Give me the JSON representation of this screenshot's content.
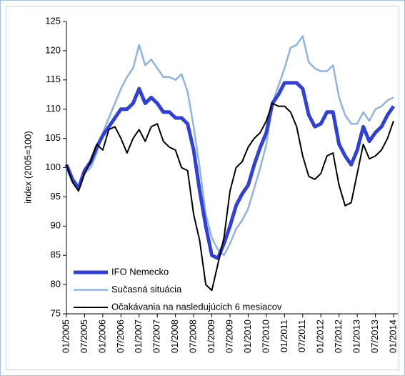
{
  "chart_data": {
    "type": "line",
    "ylabel": "index (2005=100)",
    "categories": [
      "01/2005",
      null,
      null,
      "07/2005",
      null,
      null,
      "01/2006",
      null,
      null,
      "07/2006",
      null,
      null,
      "01/2007",
      null,
      null,
      "07/2007",
      null,
      null,
      "01/2008",
      null,
      null,
      "07/2008",
      null,
      null,
      "01/2009",
      null,
      null,
      "07/2009",
      null,
      null,
      "01/2010",
      null,
      null,
      "07/2010",
      null,
      null,
      "01/2011",
      null,
      null,
      "07/2011",
      null,
      null,
      "01/2012",
      null,
      null,
      "07/2012",
      null,
      null,
      "01/2013",
      null,
      null,
      "07/2013",
      null,
      null,
      "01/2014"
    ],
    "series": [
      {
        "name": "IFO Nemecko",
        "color": "#3040d8",
        "values": [
          100.5,
          98,
          96.5,
          99.5,
          101,
          103.5,
          105.5,
          107,
          108.5,
          110,
          110,
          111,
          113.5,
          111,
          112,
          111,
          109.5,
          109.5,
          108.5,
          108.5,
          107.5,
          103,
          96,
          90,
          85,
          84.5,
          87,
          90,
          93.5,
          95.5,
          97,
          100.5,
          103.5,
          106,
          111,
          112.5,
          114.5,
          114.5,
          114.5,
          113.5,
          109,
          107,
          107.5,
          109.5,
          109.5,
          104,
          102,
          100.5,
          103,
          107,
          104.5,
          106,
          107,
          109,
          110.5
        ]
      },
      {
        "name": "Sučasná situácia",
        "color": "#8fb4e3",
        "values": [
          100,
          97.5,
          96.5,
          99,
          100,
          102.5,
          106,
          108.5,
          111,
          113.5,
          115.5,
          117,
          121,
          117.5,
          118.5,
          117,
          115.5,
          115.5,
          115,
          116,
          113,
          107,
          100,
          92,
          88,
          86,
          85,
          87,
          89.5,
          91,
          93,
          96.5,
          100,
          104,
          111,
          114,
          117,
          120.5,
          121,
          122.5,
          118,
          117,
          116.5,
          116.5,
          117.5,
          112,
          109,
          107.5,
          107.5,
          109.5,
          108,
          110,
          110.5,
          111.5,
          112
        ]
      },
      {
        "name": "Očakávania na nasledujúcich 6 mesiacov",
        "color": "#000000",
        "values": [
          100.5,
          97.5,
          96,
          99,
          101,
          104,
          103,
          106.5,
          107,
          105,
          102.5,
          105,
          106.5,
          104.5,
          107,
          107.5,
          104.5,
          103.5,
          103,
          100,
          99.5,
          92,
          87.5,
          80,
          79,
          83.5,
          88,
          96,
          100,
          101,
          103.5,
          105,
          106,
          108,
          111,
          110.5,
          110.5,
          109.5,
          107,
          102,
          98.5,
          98,
          99,
          102,
          102.5,
          97,
          93.5,
          94,
          99,
          104,
          101.5,
          102,
          103,
          105,
          108
        ]
      }
    ],
    "ylim": [
      75,
      125
    ],
    "yticks": [
      75,
      80,
      85,
      90,
      95,
      100,
      105,
      110,
      115,
      120,
      125
    ],
    "legend": "lower-left"
  }
}
